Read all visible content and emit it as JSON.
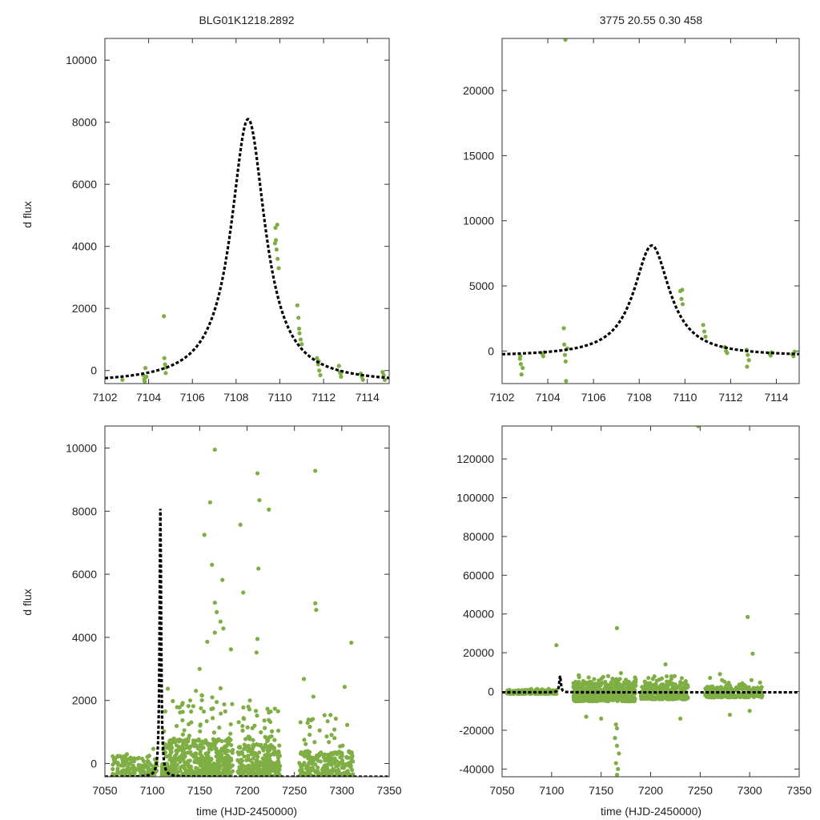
{
  "figure": {
    "title_left": "BLG01K1218.2892",
    "title_right": "3775  20.55  0.30  458",
    "ylabel": "d flux",
    "xlabel": "time (HJD-2450000)"
  },
  "colors": {
    "points": "#7fae45",
    "model": "#000000",
    "frame": "#333333"
  },
  "chart_data": [
    {
      "id": "top-left",
      "type": "scatter",
      "xlim": [
        7102,
        7115
      ],
      "ylim": [
        -420,
        10700
      ],
      "xticks": [
        7102,
        7104,
        7106,
        7108,
        7110,
        7112,
        7114
      ],
      "yticks": [
        0,
        2000,
        4000,
        6000,
        8000,
        10000
      ],
      "xlabel": "",
      "ylabel": "d flux",
      "model": {
        "t0": 7108.55,
        "peak": 8100,
        "width": 0.95,
        "baseline": -420,
        "style": "dotted"
      },
      "series": [
        {
          "name": "observations",
          "points": [
            [
              7102.8,
              -300
            ],
            [
              7103.75,
              -150
            ],
            [
              7103.8,
              -280
            ],
            [
              7103.82,
              -350
            ],
            [
              7103.85,
              80
            ],
            [
              7103.9,
              -200
            ],
            [
              7104.7,
              1750
            ],
            [
              7104.72,
              400
            ],
            [
              7104.75,
              200
            ],
            [
              7104.78,
              -80
            ],
            [
              7104.8,
              100
            ],
            [
              7109.8,
              4600
            ],
            [
              7109.82,
              4200
            ],
            [
              7109.85,
              3900
            ],
            [
              7109.88,
              4700
            ],
            [
              7109.9,
              3600
            ],
            [
              7109.95,
              3300
            ],
            [
              7109.78,
              4100
            ],
            [
              7110.8,
              2100
            ],
            [
              7110.85,
              1700
            ],
            [
              7110.9,
              1200
            ],
            [
              7110.95,
              1000
            ],
            [
              7111.0,
              850
            ],
            [
              7110.88,
              1350
            ],
            [
              7111.7,
              400
            ],
            [
              7111.75,
              200
            ],
            [
              7111.8,
              0
            ],
            [
              7111.85,
              -150
            ],
            [
              7111.78,
              300
            ],
            [
              7112.7,
              150
            ],
            [
              7112.75,
              -50
            ],
            [
              7112.8,
              -200
            ],
            [
              7112.78,
              -100
            ],
            [
              7113.7,
              -100
            ],
            [
              7113.75,
              -200
            ],
            [
              7113.8,
              -300
            ],
            [
              7114.7,
              -50
            ],
            [
              7114.75,
              -150
            ],
            [
              7114.8,
              -300
            ]
          ]
        }
      ]
    },
    {
      "id": "top-right",
      "type": "scatter",
      "xlim": [
        7102,
        7115
      ],
      "ylim": [
        -2500,
        24000
      ],
      "xticks": [
        7102,
        7104,
        7106,
        7108,
        7110,
        7112,
        7114
      ],
      "yticks": [
        0,
        5000,
        10000,
        15000,
        20000
      ],
      "xlabel": "",
      "ylabel": "",
      "model": {
        "t0": 7108.55,
        "peak": 8100,
        "width": 0.95,
        "baseline": -420,
        "style": "dotted"
      },
      "series": [
        {
          "name": "observations",
          "points": [
            [
              7102.8,
              -400
            ],
            [
              7102.82,
              -1000
            ],
            [
              7102.85,
              -1800
            ],
            [
              7102.78,
              -600
            ],
            [
              7102.9,
              -1300
            ],
            [
              7103.75,
              -200
            ],
            [
              7103.8,
              -400
            ],
            [
              7103.85,
              -100
            ],
            [
              7104.7,
              1750
            ],
            [
              7104.72,
              500
            ],
            [
              7104.75,
              -300
            ],
            [
              7104.78,
              -800
            ],
            [
              7104.8,
              -2300
            ],
            [
              7104.85,
              200
            ],
            [
              7104.77,
              23900
            ],
            [
              7109.8,
              4600
            ],
            [
              7109.85,
              4000
            ],
            [
              7109.9,
              3600
            ],
            [
              7109.88,
              4700
            ],
            [
              7110.8,
              2000
            ],
            [
              7110.85,
              1500
            ],
            [
              7110.9,
              1100
            ],
            [
              7111.75,
              300
            ],
            [
              7111.8,
              0
            ],
            [
              7111.85,
              -150
            ],
            [
              7112.7,
              100
            ],
            [
              7112.75,
              -300
            ],
            [
              7112.8,
              -700
            ],
            [
              7112.72,
              -1200
            ],
            [
              7113.7,
              -200
            ],
            [
              7113.75,
              -350
            ],
            [
              7113.8,
              -100
            ],
            [
              7114.7,
              -250
            ],
            [
              7114.75,
              -400
            ],
            [
              7114.8,
              -50
            ]
          ]
        }
      ]
    },
    {
      "id": "bottom-left",
      "type": "scatter",
      "xlim": [
        7050,
        7350
      ],
      "ylim": [
        -420,
        10700
      ],
      "xticks": [
        7050,
        7100,
        7150,
        7200,
        7250,
        7300,
        7350
      ],
      "yticks": [
        0,
        2000,
        4000,
        6000,
        8000,
        10000
      ],
      "xlabel": "time (HJD-2450000)",
      "ylabel": "d flux",
      "model": {
        "t0": 7108.55,
        "peak": 8100,
        "width": 0.95,
        "baseline": -420,
        "style": "dotted"
      },
      "outliers": [
        [
          7166,
          9950
        ],
        [
          7161,
          8280
        ],
        [
          7211,
          9200
        ],
        [
          7213,
          8350
        ],
        [
          7223,
          8050
        ],
        [
          7272,
          9280
        ],
        [
          7193,
          7570
        ],
        [
          7155,
          7250
        ],
        [
          7174,
          5820
        ],
        [
          7196,
          5420
        ],
        [
          7212,
          6180
        ],
        [
          7163,
          6300
        ],
        [
          7166,
          5100
        ],
        [
          7272,
          5080
        ],
        [
          7273,
          4870
        ],
        [
          7168,
          4800
        ],
        [
          7172,
          4500
        ],
        [
          7166,
          4150
        ],
        [
          7158,
          3860
        ],
        [
          7183,
          3620
        ],
        [
          7210,
          3520
        ],
        [
          7310,
          3830
        ],
        [
          7303,
          2430
        ],
        [
          7270,
          2120
        ],
        [
          7260,
          2680
        ],
        [
          7203,
          2000
        ],
        [
          7140,
          2000
        ],
        [
          7175,
          4280
        ],
        [
          7211,
          3950
        ],
        [
          7150,
          3000
        ]
      ],
      "clusters": [
        {
          "x": [
            7058,
            7105
          ],
          "count": 150,
          "ymin": -420,
          "ymax": 250,
          "sparse_hi": 500
        },
        {
          "x": [
            7110,
            7185
          ],
          "count": 520,
          "ymin": -420,
          "ymax": 800,
          "sparse_hi": 2400
        },
        {
          "x": [
            7190,
            7235
          ],
          "count": 300,
          "ymin": -420,
          "ymax": 600,
          "sparse_hi": 1800
        },
        {
          "x": [
            7255,
            7312
          ],
          "count": 260,
          "ymin": -420,
          "ymax": 400,
          "sparse_hi": 1600
        }
      ]
    },
    {
      "id": "bottom-right",
      "type": "scatter",
      "xlim": [
        7050,
        7350
      ],
      "ylim": [
        -44000,
        137000
      ],
      "xticks": [
        7050,
        7100,
        7150,
        7200,
        7250,
        7300,
        7350
      ],
      "yticks": [
        -40000,
        -20000,
        0,
        20000,
        40000,
        60000,
        80000,
        100000,
        120000
      ],
      "xlabel": "time (HJD-2450000)",
      "ylabel": "",
      "model": {
        "t0": 7108.55,
        "peak": 8100,
        "width": 0.95,
        "baseline": -420,
        "style": "dotted"
      },
      "outliers": [
        [
          7248,
          137000
        ],
        [
          7166,
          32700
        ],
        [
          7298,
          38500
        ],
        [
          7303,
          19500
        ],
        [
          7104.8,
          23900
        ],
        [
          7165,
          -17000
        ],
        [
          7166,
          -19000
        ],
        [
          7164,
          -24000
        ],
        [
          7166,
          -28000
        ],
        [
          7168,
          -32000
        ],
        [
          7165,
          -37000
        ],
        [
          7167,
          -40000
        ],
        [
          7166,
          -43000
        ],
        [
          7150,
          -14000
        ],
        [
          7135,
          -13000
        ],
        [
          7270,
          9000
        ],
        [
          7280,
          -12000
        ],
        [
          7230,
          -14000
        ],
        [
          7215,
          14000
        ],
        [
          7300,
          -10000
        ],
        [
          7260,
          7000
        ],
        [
          7170,
          9500
        ]
      ],
      "clusters": [
        {
          "x": [
            7055,
            7105
          ],
          "count": 160,
          "ymin": -1200,
          "ymax": 800,
          "sparse_hi": 1500
        },
        {
          "x": [
            7122,
            7185
          ],
          "count": 480,
          "ymin": -5000,
          "ymax": 5000,
          "sparse_hi": 9000
        },
        {
          "x": [
            7190,
            7238
          ],
          "count": 280,
          "ymin": -4000,
          "ymax": 4000,
          "sparse_hi": 8000
        },
        {
          "x": [
            7255,
            7313
          ],
          "count": 260,
          "ymin": -3000,
          "ymax": 2500,
          "sparse_hi": 6000
        }
      ]
    }
  ]
}
